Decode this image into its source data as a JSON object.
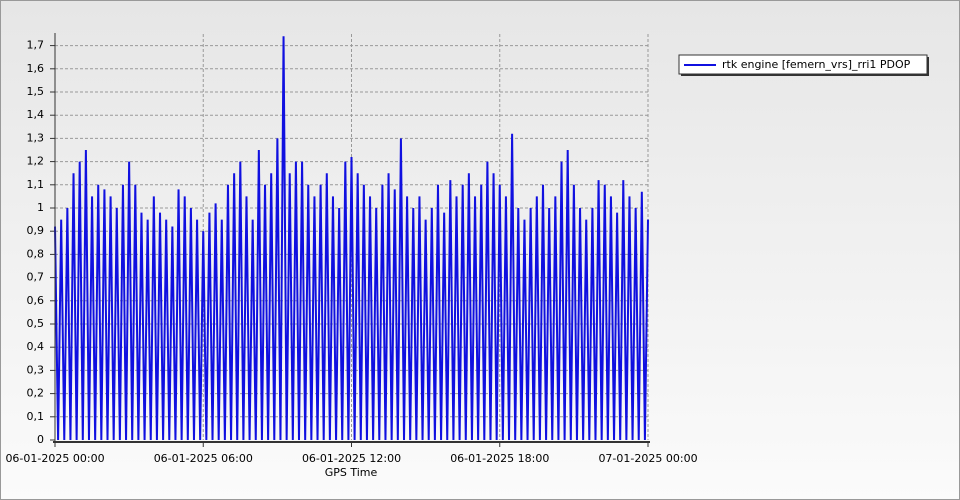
{
  "chart_data": {
    "type": "line",
    "xlabel": "GPS Time",
    "xlim": [
      0,
      24
    ],
    "xticks": [
      {
        "value": 0,
        "label": "06-01-2025 00:00"
      },
      {
        "value": 6,
        "label": "06-01-2025 06:00"
      },
      {
        "value": 12,
        "label": "06-01-2025 12:00"
      },
      {
        "value": 18,
        "label": "06-01-2025 18:00"
      },
      {
        "value": 24,
        "label": "07-01-2025 00:00"
      }
    ],
    "ylim": [
      0,
      1.75
    ],
    "yticks": [
      0,
      {
        "value": 0.1,
        "label": "0,1"
      },
      {
        "value": 0.2,
        "label": "0,2"
      },
      {
        "value": 0.3,
        "label": "0,3"
      },
      {
        "value": 0.4,
        "label": "0,4"
      },
      {
        "value": 0.5,
        "label": "0,5"
      },
      {
        "value": 0.6,
        "label": "0,6"
      },
      {
        "value": 0.7,
        "label": "0,7"
      },
      {
        "value": 0.8,
        "label": "0,8"
      },
      {
        "value": 0.9,
        "label": "0,9"
      },
      1,
      {
        "value": 1.1,
        "label": "1,1"
      },
      {
        "value": 1.2,
        "label": "1,2"
      },
      {
        "value": 1.3,
        "label": "1,3"
      },
      {
        "value": 1.4,
        "label": "1,4"
      },
      {
        "value": 1.5,
        "label": "1,5"
      },
      {
        "value": 1.6,
        "label": "1,6"
      },
      {
        "value": 1.7,
        "label": "1,7"
      }
    ],
    "grid": true,
    "legend": "top-right",
    "x": [
      0,
      0.125,
      0.25,
      0.375,
      0.5,
      0.625,
      0.75,
      0.875,
      1,
      1.125,
      1.25,
      1.375,
      1.5,
      1.625,
      1.75,
      1.875,
      2,
      2.125,
      2.25,
      2.375,
      2.5,
      2.625,
      2.75,
      2.875,
      3,
      3.125,
      3.25,
      3.375,
      3.5,
      3.625,
      3.75,
      3.875,
      4,
      4.125,
      4.25,
      4.375,
      4.5,
      4.625,
      4.75,
      4.875,
      5,
      5.125,
      5.25,
      5.375,
      5.5,
      5.625,
      5.75,
      5.875,
      6,
      6.125,
      6.25,
      6.375,
      6.5,
      6.625,
      6.75,
      6.875,
      7,
      7.125,
      7.25,
      7.375,
      7.5,
      7.625,
      7.75,
      7.875,
      8,
      8.125,
      8.25,
      8.375,
      8.5,
      8.625,
      8.75,
      8.875,
      9,
      9.125,
      9.25,
      9.375,
      9.5,
      9.625,
      9.75,
      9.875,
      10,
      10.125,
      10.25,
      10.375,
      10.5,
      10.625,
      10.75,
      10.875,
      11,
      11.125,
      11.25,
      11.375,
      11.5,
      11.625,
      11.75,
      11.875,
      12,
      12.125,
      12.25,
      12.375,
      12.5,
      12.625,
      12.75,
      12.875,
      13,
      13.125,
      13.25,
      13.375,
      13.5,
      13.625,
      13.75,
      13.875,
      14,
      14.125,
      14.25,
      14.375,
      14.5,
      14.625,
      14.75,
      14.875,
      15,
      15.125,
      15.25,
      15.375,
      15.5,
      15.625,
      15.75,
      15.875,
      16,
      16.125,
      16.25,
      16.375,
      16.5,
      16.625,
      16.75,
      16.875,
      17,
      17.125,
      17.25,
      17.375,
      17.5,
      17.625,
      17.75,
      17.875,
      18,
      18.125,
      18.25,
      18.375,
      18.5,
      18.625,
      18.75,
      18.875,
      19,
      19.125,
      19.25,
      19.375,
      19.5,
      19.625,
      19.75,
      19.875,
      20,
      20.125,
      20.25,
      20.375,
      20.5,
      20.625,
      20.75,
      20.875,
      21,
      21.125,
      21.25,
      21.375,
      21.5,
      21.625,
      21.75,
      21.875,
      22,
      22.125,
      22.25,
      22.375,
      22.5,
      22.625,
      22.75,
      22.875,
      23,
      23.125,
      23.25,
      23.375,
      23.5,
      23.625,
      23.75,
      23.875,
      24
    ],
    "series": [
      {
        "name": "rtk engine [femern_vrs]_rri1 PDOP",
        "color": "#1010e0",
        "values": [
          0.92,
          0,
          0.95,
          0,
          1.0,
          0,
          1.15,
          0,
          1.2,
          0,
          1.25,
          0,
          1.05,
          0,
          1.1,
          0,
          1.08,
          0,
          1.05,
          0,
          1.0,
          0,
          1.1,
          0,
          1.2,
          0,
          1.1,
          0,
          0.98,
          0,
          0.95,
          0,
          1.05,
          0,
          0.98,
          0,
          0.95,
          0,
          0.92,
          0,
          1.08,
          0,
          1.05,
          0,
          1.0,
          0,
          0.95,
          0,
          0.9,
          0,
          0.98,
          0,
          1.02,
          0,
          0.95,
          0,
          1.1,
          0,
          1.15,
          0,
          1.2,
          0,
          1.05,
          0,
          0.95,
          0,
          1.25,
          0,
          1.1,
          0,
          1.15,
          0,
          1.3,
          0,
          1.74,
          0,
          1.15,
          0,
          1.2,
          0,
          1.2,
          0,
          1.1,
          0,
          1.05,
          0,
          1.1,
          0,
          1.15,
          0,
          1.05,
          0,
          1.0,
          0,
          1.2,
          0,
          1.22,
          0,
          1.15,
          0,
          1.1,
          0,
          1.05,
          0,
          1.0,
          0,
          1.1,
          0,
          1.15,
          0,
          1.08,
          0,
          1.3,
          0,
          1.05,
          0,
          1.0,
          0,
          1.05,
          0,
          0.95,
          0,
          1.0,
          0,
          1.1,
          0,
          0.98,
          0,
          1.12,
          0,
          1.05,
          0,
          1.1,
          0,
          1.15,
          0,
          1.05,
          0,
          1.1,
          0,
          1.2,
          0,
          1.15,
          0,
          1.1,
          0,
          1.05,
          0,
          1.32,
          0,
          1.0,
          0,
          0.95,
          0,
          1.0,
          0,
          1.05,
          0,
          1.1,
          0,
          1.0,
          0,
          1.05,
          0,
          1.2,
          0,
          1.25,
          0,
          1.1,
          0,
          1.0,
          0,
          0.95,
          0,
          1.0,
          0,
          1.12,
          0,
          1.1,
          0,
          1.05,
          0,
          0.98,
          0,
          1.12,
          0,
          1.05,
          0,
          1.0,
          0,
          1.07,
          0,
          0.95
        ]
      }
    ]
  }
}
